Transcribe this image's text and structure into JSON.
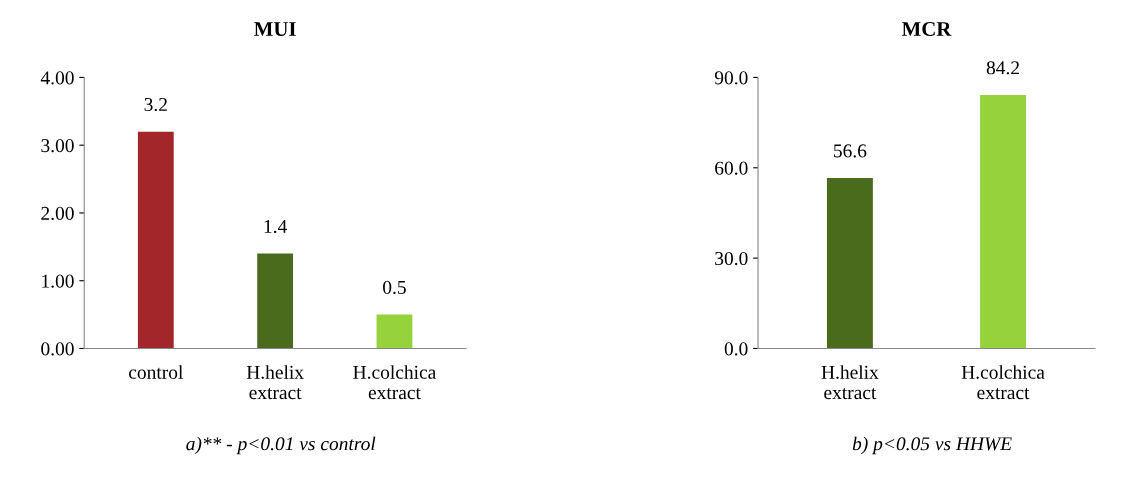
{
  "chart_data": [
    {
      "type": "bar",
      "title": "MUI",
      "categories": [
        "control",
        "H.helix\nextract",
        "H.colchica\nextract"
      ],
      "values": [
        3.2,
        1.4,
        0.5
      ],
      "colors": [
        "#a3262a",
        "#4a6a1c",
        "#96d23c"
      ],
      "ylim": [
        0,
        4
      ],
      "yticks": [
        {
          "value": 0,
          "label": "0.00"
        },
        {
          "value": 1,
          "label": "1.00"
        },
        {
          "value": 2,
          "label": "2.00"
        },
        {
          "value": 3,
          "label": "3.00"
        },
        {
          "value": 4,
          "label": "4.00"
        }
      ],
      "data_labels": true,
      "annotations": [
        "a)** - p<0.01 vs control"
      ]
    },
    {
      "type": "bar",
      "title": "MCR",
      "categories": [
        "H.helix\nextract",
        "H.colchica\nextract"
      ],
      "values": [
        56.6,
        84.2
      ],
      "colors": [
        "#4a6a1c",
        "#96d23c"
      ],
      "ylim": [
        0,
        90
      ],
      "yticks": [
        {
          "value": 0,
          "label": "0.0"
        },
        {
          "value": 30,
          "label": "30.0"
        },
        {
          "value": 60,
          "label": "60.0"
        },
        {
          "value": 90,
          "label": "90.0"
        }
      ],
      "data_labels": true,
      "annotations": [
        "b) p<0.05 vs HHWE"
      ]
    }
  ]
}
